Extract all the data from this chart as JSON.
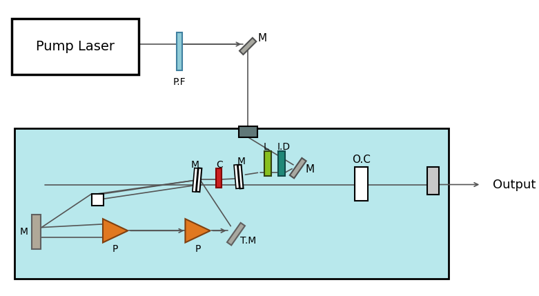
{
  "pump_label": "Pump Laser",
  "output_label": "Output",
  "pf_label": "P.F",
  "cavity_bg": "#b8e8ec",
  "white": "#ffffff",
  "black": "#000000",
  "gray_mirror": "#a8a8a0",
  "dark_gray": "#505050",
  "light_gray": "#c8c8c0",
  "pf_color": "#90ccd8",
  "L_color": "#88c020",
  "ID_color": "#208878",
  "prism_color": "#e07820",
  "red_crystal": "#cc2020",
  "line_color": "#555555",
  "coup_color": "#607878"
}
